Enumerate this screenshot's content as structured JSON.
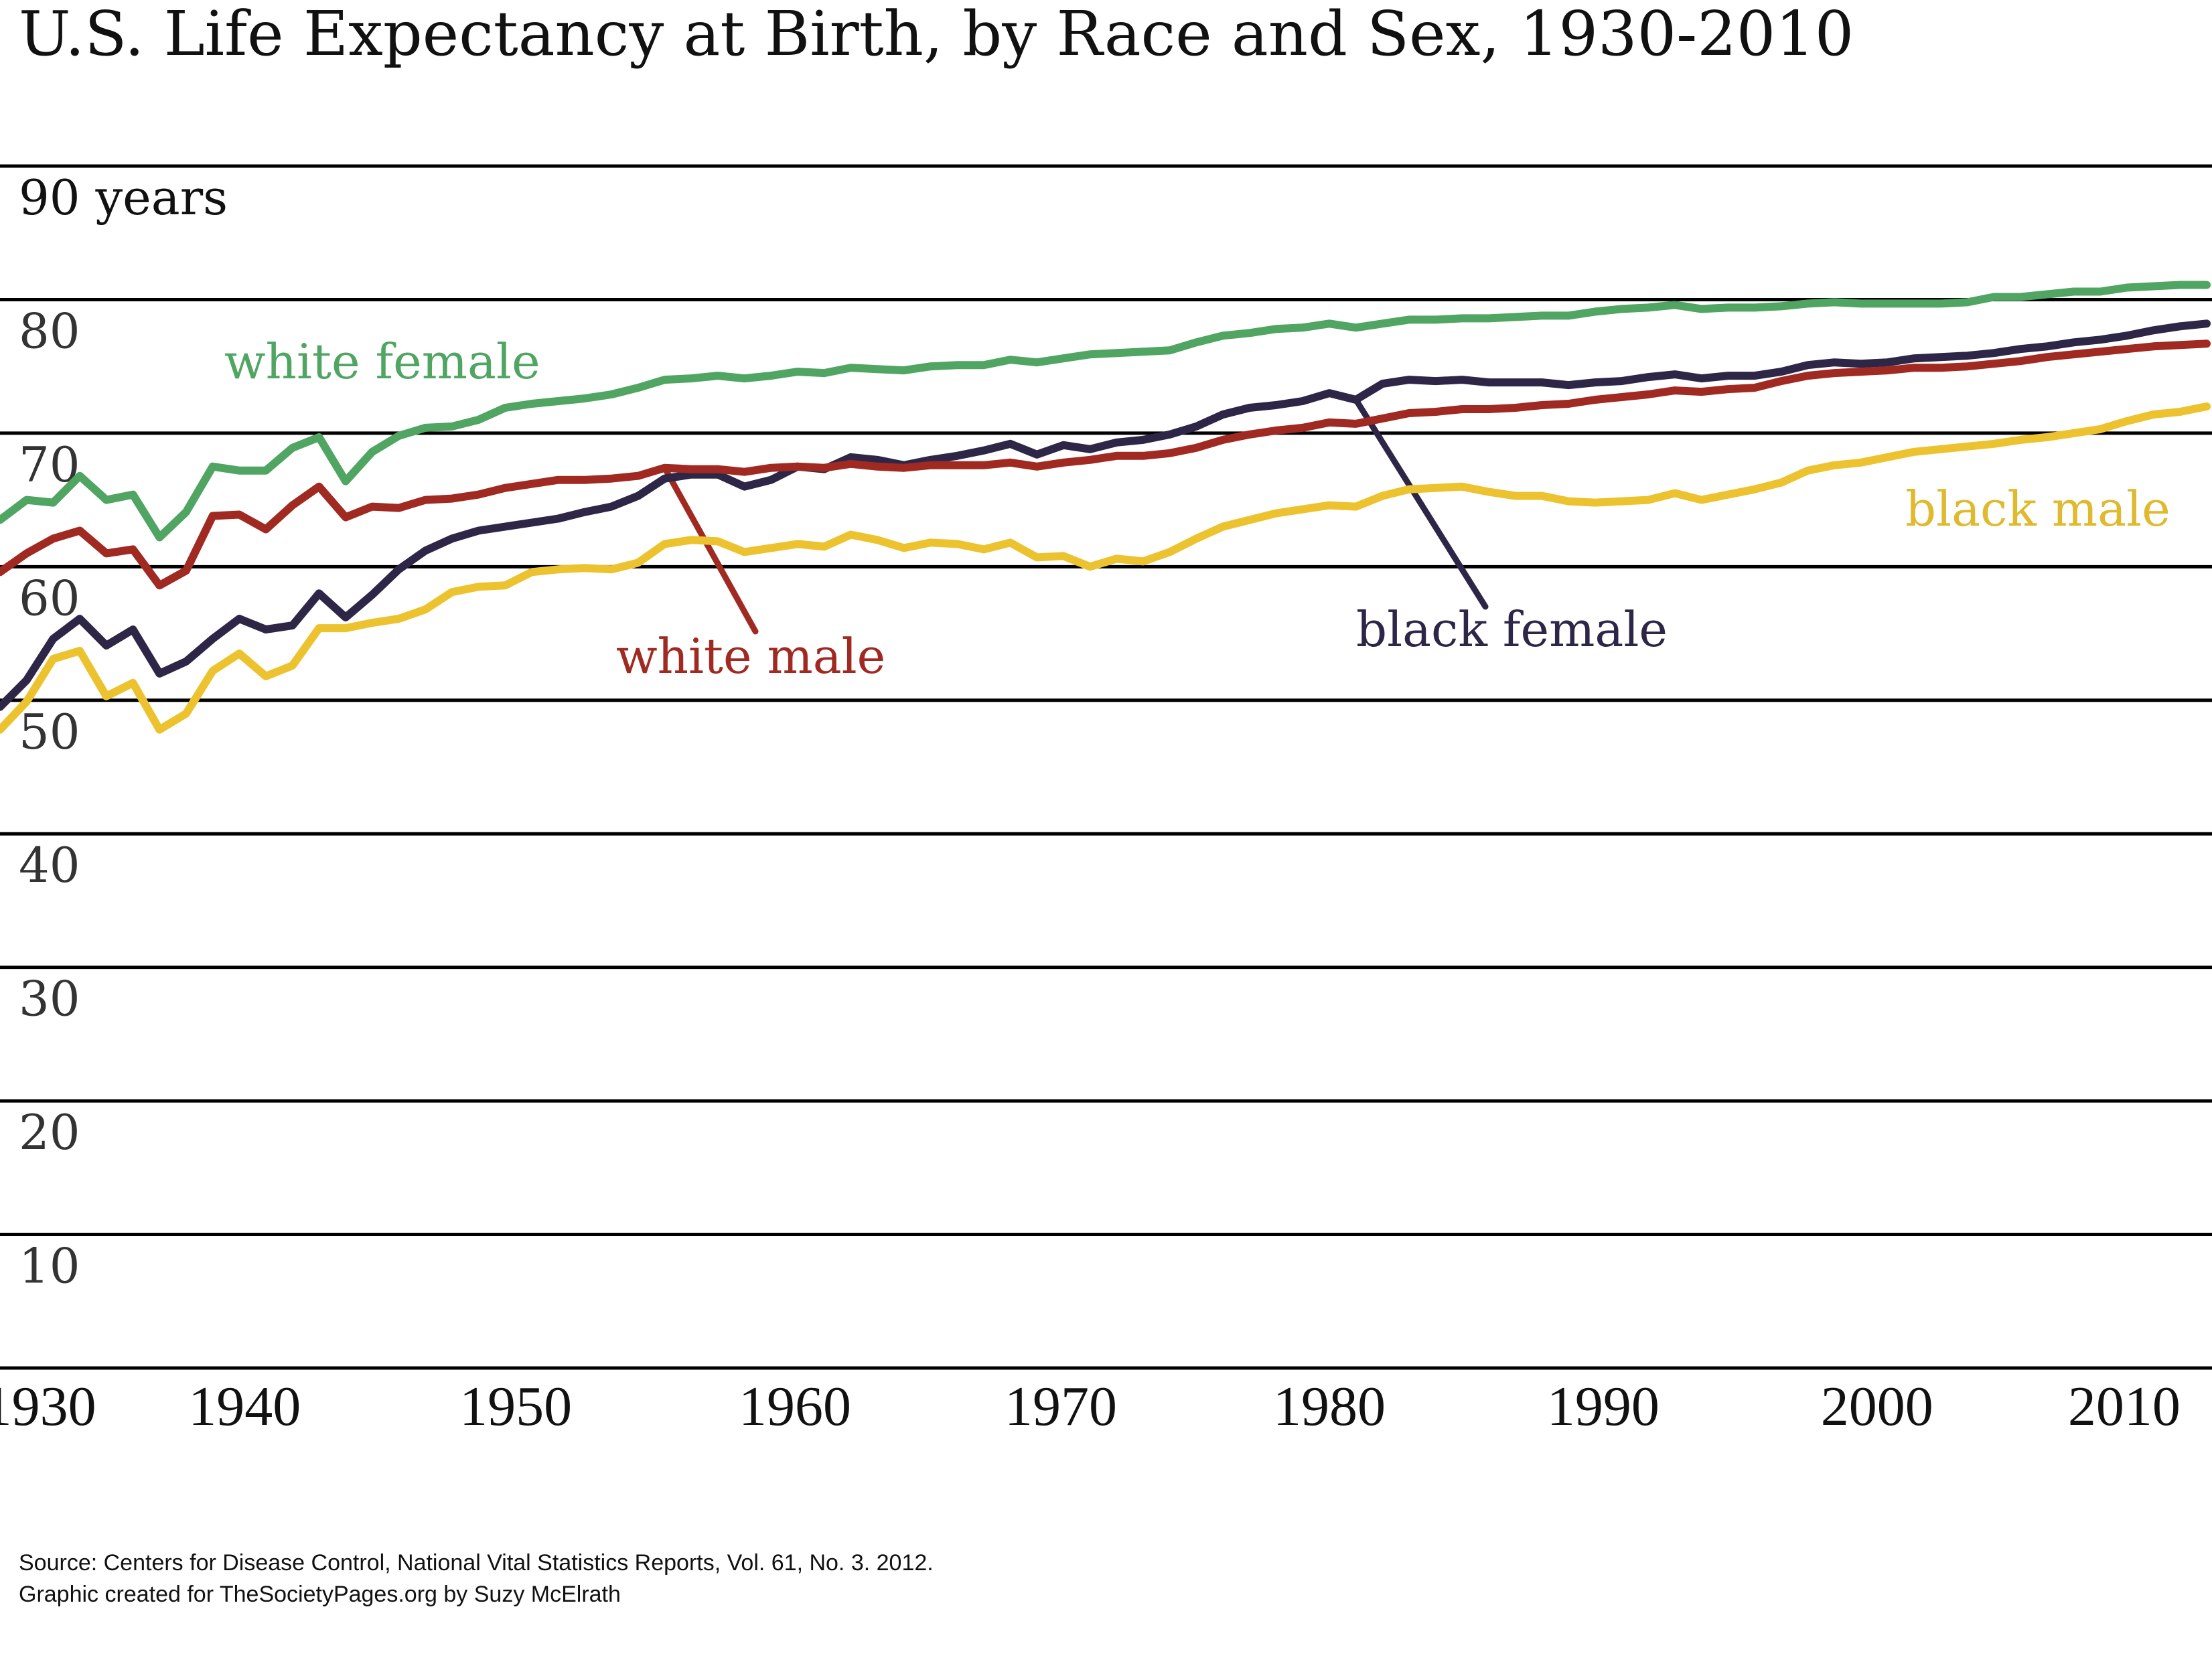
{
  "chart_data": {
    "type": "line",
    "title": "U.S. Life Expectancy at Birth, by Race and Sex, 1930-2010",
    "xlabel": "",
    "ylabel": "years",
    "ylim": [
      0,
      90
    ],
    "xlim": [
      1929,
      2012
    ],
    "grid": true,
    "y_ticks": [
      {
        "value": 90,
        "label": "90 years"
      },
      {
        "value": 80,
        "label": "80"
      },
      {
        "value": 70,
        "label": "70"
      },
      {
        "value": 60,
        "label": "60"
      },
      {
        "value": 50,
        "label": "50"
      },
      {
        "value": 40,
        "label": "40"
      },
      {
        "value": 30,
        "label": "30"
      },
      {
        "value": 20,
        "label": "20"
      },
      {
        "value": 10,
        "label": "10"
      },
      {
        "value": 0,
        "label": ""
      }
    ],
    "x_ticks": [
      {
        "value": 1930.5,
        "label": "1930"
      },
      {
        "value": 1938.2,
        "label": "1940"
      },
      {
        "value": 1948.4,
        "label": "1950"
      },
      {
        "value": 1958.9,
        "label": "1960"
      },
      {
        "value": 1968.9,
        "label": "1970"
      },
      {
        "value": 1979.0,
        "label": "1980"
      },
      {
        "value": 1989.3,
        "label": "1990"
      },
      {
        "value": 1999.6,
        "label": "2000"
      },
      {
        "value": 2008.9,
        "label": "2010"
      }
    ],
    "x": [
      1929,
      1930,
      1931,
      1932,
      1933,
      1934,
      1935,
      1936,
      1937,
      1938,
      1939,
      1940,
      1941,
      1942,
      1943,
      1944,
      1945,
      1946,
      1947,
      1948,
      1949,
      1950,
      1951,
      1952,
      1953,
      1954,
      1955,
      1956,
      1957,
      1958,
      1959,
      1960,
      1961,
      1962,
      1963,
      1964,
      1965,
      1966,
      1967,
      1968,
      1969,
      1970,
      1971,
      1972,
      1973,
      1974,
      1975,
      1976,
      1977,
      1978,
      1979,
      1980,
      1981,
      1982,
      1983,
      1984,
      1985,
      1986,
      1987,
      1988,
      1989,
      1990,
      1991,
      1992,
      1993,
      1994,
      1995,
      1996,
      1997,
      1998,
      1999,
      2000,
      2001,
      2002,
      2003,
      2004,
      2005,
      2006,
      2007,
      2008,
      2009,
      2010,
      2011,
      2012
    ],
    "series": [
      {
        "name": "white female",
        "color": "#4fa561",
        "values": [
          63.5,
          65.0,
          64.8,
          66.8,
          65.0,
          65.4,
          62.2,
          64.1,
          67.5,
          67.2,
          67.2,
          68.9,
          69.7,
          66.4,
          68.6,
          69.8,
          70.4,
          70.5,
          71.0,
          71.9,
          72.2,
          72.4,
          72.6,
          72.9,
          73.4,
          74.0,
          74.1,
          74.3,
          74.1,
          74.3,
          74.6,
          74.5,
          74.9,
          74.8,
          74.7,
          75.0,
          75.1,
          75.1,
          75.5,
          75.3,
          75.6,
          75.9,
          76.0,
          76.1,
          76.2,
          76.8,
          77.3,
          77.5,
          77.8,
          77.9,
          78.2,
          77.9,
          78.2,
          78.5,
          78.5,
          78.6,
          78.6,
          78.7,
          78.8,
          78.8,
          79.1,
          79.3,
          79.4,
          79.6,
          79.3,
          79.4,
          79.4,
          79.5,
          79.7,
          79.8,
          79.7,
          79.7,
          79.7,
          79.7,
          79.8,
          80.2,
          80.2,
          80.4,
          80.6,
          80.6,
          80.9,
          81.0,
          81.1,
          81.1
        ]
      },
      {
        "name": "white male",
        "color": "#a02a22",
        "values": [
          59.6,
          61.0,
          62.1,
          62.7,
          61.0,
          61.3,
          58.6,
          59.7,
          63.8,
          63.9,
          62.8,
          64.6,
          66.0,
          63.7,
          64.5,
          64.4,
          65.0,
          65.1,
          65.4,
          65.9,
          66.2,
          66.5,
          66.5,
          66.6,
          66.8,
          67.4,
          67.3,
          67.3,
          67.1,
          67.4,
          67.5,
          67.4,
          67.7,
          67.5,
          67.4,
          67.6,
          67.6,
          67.6,
          67.8,
          67.5,
          67.8,
          68.0,
          68.3,
          68.3,
          68.5,
          68.9,
          69.5,
          69.9,
          70.2,
          70.4,
          70.8,
          70.7,
          71.1,
          71.5,
          71.6,
          71.8,
          71.8,
          71.9,
          72.1,
          72.2,
          72.5,
          72.7,
          72.9,
          73.2,
          73.1,
          73.3,
          73.4,
          73.9,
          74.3,
          74.5,
          74.6,
          74.7,
          74.9,
          74.9,
          75.0,
          75.2,
          75.4,
          75.7,
          75.9,
          76.1,
          76.3,
          76.5,
          76.6,
          76.7
        ]
      },
      {
        "name": "black female",
        "color": "#2e2646",
        "values": [
          49.5,
          51.5,
          54.6,
          56.1,
          54.1,
          55.3,
          52.0,
          52.9,
          54.6,
          56.1,
          55.3,
          55.6,
          58.0,
          56.2,
          57.9,
          59.8,
          61.2,
          62.1,
          62.7,
          63.0,
          63.3,
          63.6,
          64.1,
          64.5,
          65.3,
          66.6,
          66.9,
          66.9,
          66.0,
          66.5,
          67.5,
          67.3,
          68.2,
          68.0,
          67.6,
          68.0,
          68.3,
          68.7,
          69.2,
          68.4,
          69.1,
          68.8,
          69.3,
          69.5,
          69.9,
          70.5,
          71.4,
          71.9,
          72.1,
          72.4,
          73.0,
          72.5,
          73.7,
          74.0,
          73.9,
          74.0,
          73.8,
          73.8,
          73.8,
          73.6,
          73.8,
          73.9,
          74.2,
          74.4,
          74.1,
          74.3,
          74.3,
          74.6,
          75.1,
          75.3,
          75.2,
          75.3,
          75.6,
          75.7,
          75.8,
          76.0,
          76.3,
          76.5,
          76.8,
          77.0,
          77.3,
          77.7,
          78.0,
          78.2
        ]
      },
      {
        "name": "black male",
        "color": "#ecc32e",
        "values": [
          47.8,
          49.9,
          53.1,
          53.7,
          50.3,
          51.3,
          47.8,
          49.0,
          52.2,
          53.5,
          51.8,
          52.6,
          55.4,
          55.4,
          55.8,
          56.1,
          56.8,
          58.1,
          58.5,
          58.6,
          59.6,
          59.8,
          59.9,
          59.8,
          60.3,
          61.7,
          62.0,
          61.9,
          61.1,
          61.4,
          61.7,
          61.5,
          62.4,
          62.0,
          61.4,
          61.8,
          61.7,
          61.3,
          61.8,
          60.7,
          60.8,
          60.0,
          60.6,
          60.4,
          61.1,
          62.1,
          63.0,
          63.5,
          64.0,
          64.3,
          64.6,
          64.5,
          65.3,
          65.8,
          65.9,
          66.0,
          65.6,
          65.3,
          65.3,
          64.9,
          64.8,
          64.9,
          65.0,
          65.5,
          65.0,
          65.4,
          65.8,
          66.3,
          67.2,
          67.6,
          67.8,
          68.2,
          68.6,
          68.8,
          69.0,
          69.2,
          69.5,
          69.7,
          70.0,
          70.3,
          70.9,
          71.4,
          71.6,
          72.0
        ]
      }
    ],
    "annotations": [
      {
        "text": "white female",
        "series": "white female",
        "color": "#4fa561",
        "leader": false
      },
      {
        "text": "white male",
        "series": "white male",
        "color": "#a02a22",
        "leader": true,
        "leader_from_year": 1954
      },
      {
        "text": "black female",
        "series": "black female",
        "color": "#2e2646",
        "leader": true,
        "leader_from_year": 1980
      },
      {
        "text": "black male",
        "series": "black male",
        "color": "#dfb92e",
        "leader": false
      }
    ],
    "legend": "none (direct labels)"
  },
  "title": "U.S. Life Expectancy at Birth, by Race and Sex, 1930-2010",
  "source": {
    "line1": "Source: Centers for Disease Control, National Vital Statistics Reports, Vol. 61, No. 3. 2012.",
    "line2": "Graphic created for TheSocietyPages.org by Suzy McElrath"
  }
}
